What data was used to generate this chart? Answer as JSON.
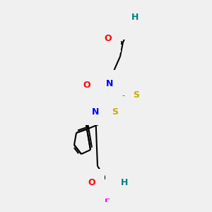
{
  "bg_color": "#f0f0f0",
  "bond_color": "#000000",
  "bond_width": 1.5,
  "atom_colors": {
    "O": "#ff0000",
    "N": "#0000ff",
    "S": "#ccaa00",
    "F": "#ff00ff",
    "H": "#008080",
    "C": "#000000"
  },
  "font_size": 9
}
